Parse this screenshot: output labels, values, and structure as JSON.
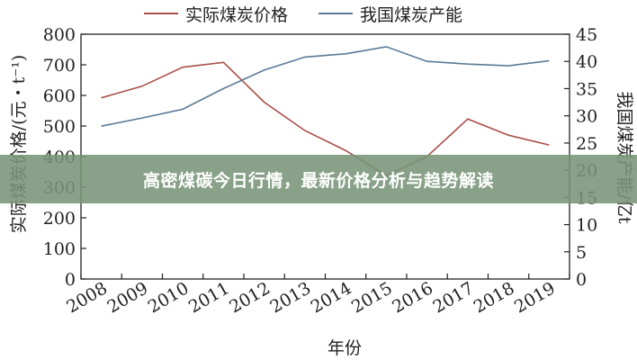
{
  "banner": {
    "text": "高密煤碳今日行情，最新价格分析与趋势解读"
  },
  "chart_data": {
    "type": "line",
    "categories": [
      "2008",
      "2009",
      "2010",
      "2011",
      "2012",
      "2013",
      "2014",
      "2015",
      "2016",
      "2017",
      "2018",
      "2019"
    ],
    "xlabel": "年份",
    "ylabel_left": "实际煤炭价格/(元・t⁻¹)",
    "ylabel_right": "我国煤炭产能/亿t",
    "ylim_left": [
      0,
      800
    ],
    "yticks_left": [
      0,
      100,
      200,
      300,
      400,
      500,
      600,
      700,
      800
    ],
    "ylim_right": [
      0,
      45
    ],
    "yticks_right": [
      0,
      5,
      10,
      15,
      20,
      25,
      30,
      35,
      40,
      45
    ],
    "legend_position": "top",
    "grid": false,
    "series": [
      {
        "name": "实际煤炭价格",
        "axis": "left",
        "color": "#a8504a",
        "values": [
          592,
          630,
          692,
          708,
          578,
          485,
          420,
          338,
          400,
          523,
          470,
          438
        ]
      },
      {
        "name": "我国煤炭产能",
        "axis": "right",
        "color": "#5a7a96",
        "values": [
          28.1,
          29.6,
          31.2,
          35.0,
          38.4,
          40.8,
          41.4,
          42.7,
          40.0,
          39.5,
          39.2,
          40.1
        ]
      }
    ]
  }
}
